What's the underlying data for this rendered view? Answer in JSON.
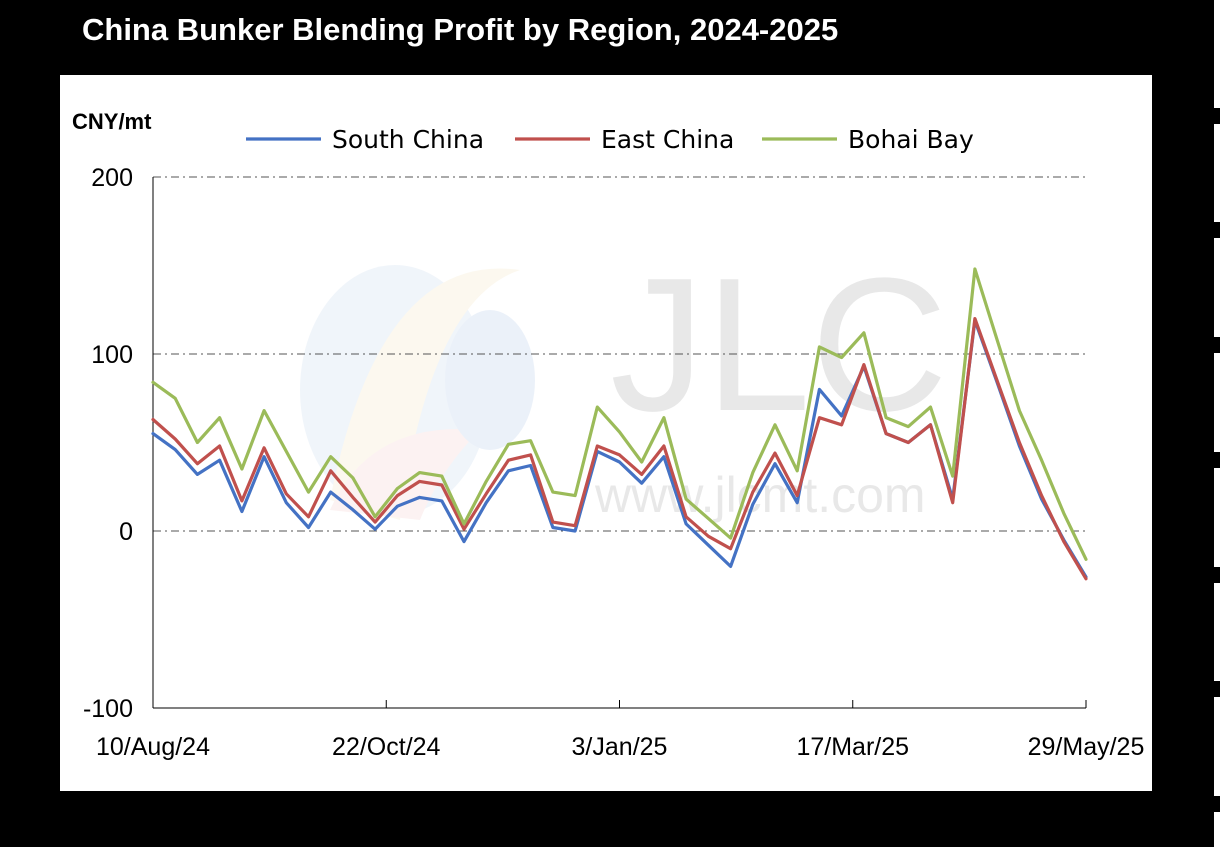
{
  "title": "China Bunker Blending Profit by Region, 2024-2025",
  "chart_data": {
    "type": "line",
    "title": "China Bunker Blending Profit by Region, 2024-2025",
    "ylabel": "CNY/mt",
    "xlabel": "",
    "ylim": [
      -100,
      200
    ],
    "yticks": [
      200,
      100,
      0,
      -100
    ],
    "xticks": [
      "10/Aug/24",
      "22/Oct/24",
      "3/Jan/25",
      "17/Mar/25",
      "29/May/25"
    ],
    "grid": "horizontal dash-dot",
    "legend": "top",
    "watermark": "JLC www.jlcmt.com",
    "series": [
      {
        "name": "South China",
        "color": "#4472C4",
        "values": [
          55,
          46,
          32,
          40,
          11,
          42,
          16,
          2,
          22,
          12,
          1,
          14,
          19,
          17,
          -6,
          16,
          34,
          37,
          2,
          0,
          45,
          39,
          27,
          42,
          4,
          -8,
          -20,
          15,
          38,
          16,
          80,
          65,
          93,
          55,
          50,
          60,
          18,
          119,
          84,
          48,
          18,
          -5,
          -26
        ]
      },
      {
        "name": "East China",
        "color": "#C0504D",
        "values": [
          63,
          52,
          38,
          48,
          17,
          47,
          21,
          8,
          34,
          19,
          5,
          20,
          28,
          26,
          1,
          21,
          40,
          43,
          5,
          3,
          48,
          43,
          32,
          48,
          8,
          -3,
          -10,
          22,
          44,
          20,
          64,
          60,
          94,
          55,
          50,
          60,
          16,
          120,
          85,
          50,
          20,
          -6,
          -27
        ]
      },
      {
        "name": "Bohai Bay",
        "color": "#9BBB59",
        "values": [
          84,
          75,
          50,
          64,
          35,
          68,
          45,
          22,
          42,
          30,
          8,
          24,
          33,
          31,
          4,
          28,
          49,
          51,
          22,
          20,
          70,
          56,
          39,
          64,
          18,
          7,
          -4,
          33,
          60,
          34,
          104,
          98,
          112,
          64,
          59,
          70,
          31,
          148,
          108,
          68,
          40,
          10,
          -16
        ]
      }
    ]
  }
}
